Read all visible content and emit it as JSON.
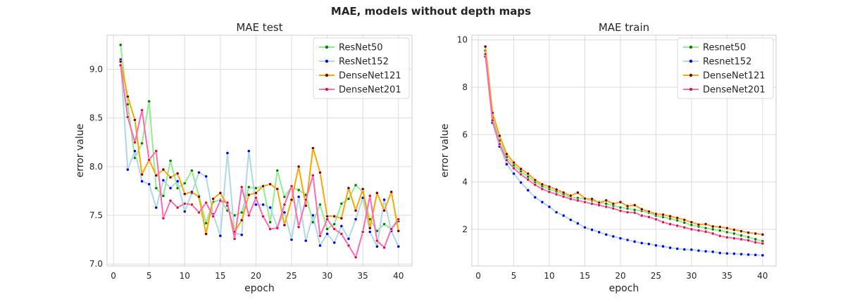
{
  "figure": {
    "suptitle": "MAE, models without depth maps"
  },
  "chart_data": [
    {
      "type": "line",
      "title": "MAE test",
      "xlabel": "epoch",
      "ylabel": "error value",
      "xlim": [
        -0.9,
        41.9
      ],
      "ylim": [
        6.98,
        9.35
      ],
      "xticks": [
        0,
        5,
        10,
        15,
        20,
        25,
        30,
        35,
        40
      ],
      "yticks": [
        7.0,
        7.5,
        8.0,
        8.5,
        9.0
      ],
      "ytick_labels": [
        "7.0",
        "7.5",
        "8.0",
        "8.5",
        "9.0"
      ],
      "grid": true,
      "legend": "top-right",
      "x": [
        1,
        2,
        3,
        4,
        5,
        6,
        7,
        8,
        9,
        10,
        11,
        12,
        13,
        14,
        15,
        16,
        17,
        18,
        19,
        20,
        21,
        22,
        23,
        24,
        25,
        26,
        27,
        28,
        29,
        30,
        31,
        32,
        33,
        34,
        35,
        36,
        37,
        38,
        39,
        40
      ],
      "series": [
        {
          "name": "ResNet50",
          "color": "#90ee90",
          "marker": "#008000",
          "values": [
            9.25,
            8.64,
            8.09,
            8.24,
            8.67,
            7.78,
            7.7,
            8.06,
            7.78,
            7.83,
            7.96,
            7.7,
            7.42,
            7.64,
            7.66,
            7.55,
            7.5,
            7.53,
            7.79,
            7.78,
            7.8,
            7.43,
            7.96,
            7.69,
            7.79,
            7.76,
            7.71,
            7.43,
            7.61,
            7.36,
            7.41,
            7.62,
            7.67,
            7.81,
            7.74,
            7.46,
            7.34,
            7.41,
            7.36,
            7.44
          ]
        },
        {
          "name": "ResNet152",
          "color": "#add8e6",
          "marker": "#0000ff",
          "values": [
            9.1,
            7.97,
            8.16,
            7.85,
            7.82,
            7.58,
            7.86,
            7.78,
            7.85,
            7.54,
            7.73,
            7.94,
            7.9,
            7.51,
            7.29,
            8.14,
            7.32,
            7.3,
            8.16,
            7.61,
            7.61,
            7.58,
            7.38,
            7.53,
            7.25,
            7.69,
            7.24,
            7.5,
            7.19,
            7.31,
            7.22,
            7.39,
            7.26,
            7.46,
            7.68,
            7.33,
            7.18,
            7.66,
            7.34,
            7.18
          ]
        },
        {
          "name": "DenseNet121",
          "color": "#ffa500",
          "marker": "#800000",
          "values": [
            9.08,
            8.72,
            8.48,
            7.92,
            8.07,
            7.91,
            7.97,
            7.89,
            7.93,
            7.72,
            7.74,
            7.69,
            7.31,
            7.67,
            7.73,
            7.6,
            7.33,
            7.45,
            7.71,
            7.73,
            7.8,
            7.82,
            7.77,
            7.4,
            7.66,
            8.0,
            7.6,
            8.19,
            7.94,
            7.49,
            7.49,
            7.47,
            7.78,
            7.55,
            7.77,
            7.37,
            7.73,
            7.55,
            7.74,
            7.34
          ]
        },
        {
          "name": "DenseNet201",
          "color": "#ff69b4",
          "marker": "#dc143c",
          "values": [
            9.04,
            8.51,
            8.25,
            8.58,
            8.07,
            8.16,
            7.47,
            7.65,
            7.58,
            7.62,
            7.61,
            7.53,
            7.63,
            7.49,
            7.65,
            7.63,
            7.26,
            7.79,
            7.5,
            7.68,
            7.49,
            7.36,
            7.37,
            7.61,
            7.8,
            7.38,
            7.66,
            7.91,
            7.29,
            7.46,
            7.36,
            7.31,
            7.19,
            7.07,
            7.33,
            7.7,
            7.24,
            7.17,
            7.36,
            7.46
          ]
        }
      ]
    },
    {
      "type": "line",
      "title": "MAE train",
      "xlabel": "epoch",
      "ylabel": "error value",
      "xlim": [
        -0.9,
        41.9
      ],
      "ylim": [
        0.45,
        10.2
      ],
      "xticks": [
        0,
        5,
        10,
        15,
        20,
        25,
        30,
        35,
        40
      ],
      "yticks": [
        2,
        4,
        6,
        8,
        10
      ],
      "ytick_labels": [
        "2",
        "4",
        "6",
        "8",
        "10"
      ],
      "grid": true,
      "legend": "top-right",
      "x": [
        1,
        2,
        3,
        4,
        5,
        6,
        7,
        8,
        9,
        10,
        11,
        12,
        13,
        14,
        15,
        16,
        17,
        18,
        19,
        20,
        21,
        22,
        23,
        24,
        25,
        26,
        27,
        28,
        29,
        30,
        31,
        32,
        33,
        34,
        35,
        36,
        37,
        38,
        39,
        40
      ],
      "series": [
        {
          "name": "Resnet50",
          "color": "#90ee90",
          "marker": "#008000",
          "values": [
            9.55,
            6.7,
            5.75,
            5.05,
            4.7,
            4.45,
            4.22,
            4.0,
            3.82,
            3.7,
            3.6,
            3.48,
            3.35,
            3.32,
            3.28,
            3.22,
            3.15,
            3.08,
            3.0,
            2.92,
            2.88,
            2.82,
            2.78,
            2.7,
            2.58,
            2.52,
            2.45,
            2.38,
            2.28,
            2.18,
            2.12,
            2.05,
            2.0,
            1.95,
            1.88,
            1.82,
            1.74,
            1.67,
            1.58,
            1.5
          ]
        },
        {
          "name": "Resnet152",
          "color": "#add8e6",
          "marker": "#0000ff",
          "values": [
            9.3,
            6.5,
            5.5,
            4.75,
            4.35,
            3.98,
            3.65,
            3.35,
            3.15,
            2.95,
            2.72,
            2.58,
            2.4,
            2.25,
            2.08,
            1.98,
            1.88,
            1.78,
            1.7,
            1.62,
            1.55,
            1.48,
            1.42,
            1.38,
            1.32,
            1.28,
            1.22,
            1.18,
            1.15,
            1.14,
            1.1,
            1.07,
            1.05,
            1.0,
            0.98,
            0.97,
            0.95,
            0.93,
            0.92,
            0.9
          ]
        },
        {
          "name": "DenseNet121",
          "color": "#ffa500",
          "marker": "#800000",
          "values": [
            9.72,
            6.92,
            5.95,
            5.18,
            4.82,
            4.55,
            4.35,
            4.08,
            3.9,
            3.8,
            3.68,
            3.55,
            3.42,
            3.55,
            3.3,
            3.28,
            3.12,
            3.22,
            3.08,
            3.15,
            2.98,
            3.02,
            2.85,
            2.75,
            2.65,
            2.62,
            2.55,
            2.48,
            2.4,
            2.3,
            2.2,
            2.22,
            2.12,
            2.1,
            2.05,
            1.98,
            1.92,
            1.86,
            1.82,
            1.78
          ]
        },
        {
          "name": "DenseNet201",
          "color": "#ff69b4",
          "marker": "#dc143c",
          "values": [
            9.4,
            6.6,
            5.6,
            4.92,
            4.58,
            4.32,
            4.1,
            3.88,
            3.7,
            3.58,
            3.48,
            3.38,
            3.28,
            3.22,
            3.15,
            3.08,
            3.02,
            2.95,
            2.88,
            2.78,
            2.72,
            2.7,
            2.58,
            2.52,
            2.42,
            2.3,
            2.22,
            2.15,
            2.08,
            2.0,
            1.95,
            1.9,
            1.82,
            1.72,
            1.66,
            1.62,
            1.58,
            1.53,
            1.45,
            1.4
          ]
        }
      ]
    }
  ]
}
